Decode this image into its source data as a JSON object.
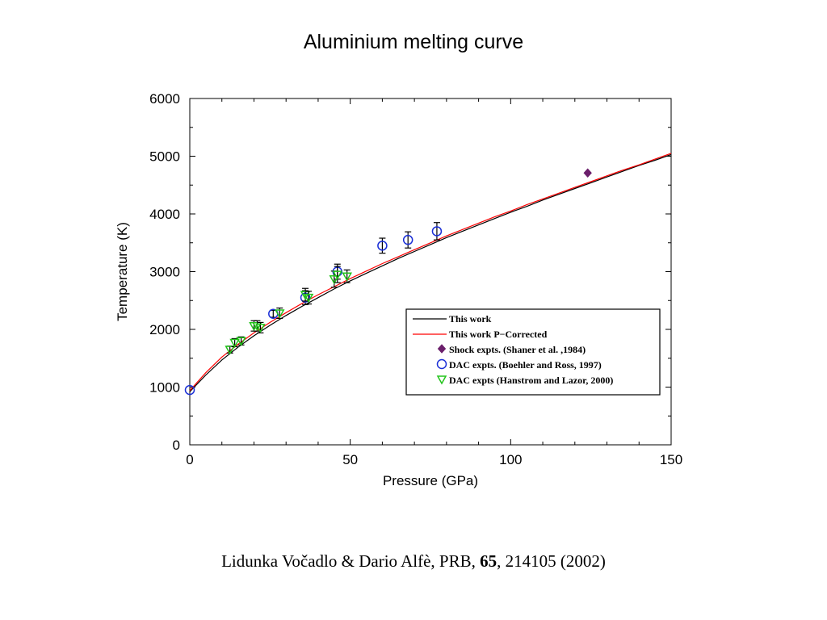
{
  "chart_data": {
    "type": "line",
    "title": "Aluminium melting curve",
    "xlabel": "Pressure (GPa)",
    "ylabel": "Temperature (K)",
    "xlim": [
      0,
      150
    ],
    "ylim": [
      0,
      6000
    ],
    "xticks": [
      0,
      50,
      100,
      150
    ],
    "yticks": [
      0,
      1000,
      2000,
      3000,
      4000,
      5000,
      6000
    ],
    "legend_position": "lower-right",
    "series": [
      {
        "name": "This work",
        "kind": "line",
        "color": "#000000",
        "x": [
          0,
          5,
          10,
          15,
          20,
          25,
          30,
          35,
          40,
          45,
          50,
          55,
          60,
          65,
          70,
          75,
          80,
          85,
          90,
          95,
          100,
          105,
          110,
          115,
          120,
          125,
          130,
          135,
          140,
          145,
          150
        ],
        "y": [
          920,
          1210,
          1470,
          1690,
          1890,
          2070,
          2240,
          2400,
          2550,
          2700,
          2840,
          2970,
          3100,
          3230,
          3350,
          3470,
          3590,
          3700,
          3810,
          3920,
          4030,
          4130,
          4240,
          4340,
          4440,
          4540,
          4640,
          4740,
          4840,
          4930,
          5030
        ]
      },
      {
        "name": "This work P−Corrected",
        "kind": "line",
        "color": "#ff0000",
        "x": [
          0,
          5,
          10,
          15,
          20,
          25,
          30,
          35,
          40,
          45,
          50,
          55,
          60,
          65,
          70,
          75,
          80,
          85,
          90,
          95,
          100,
          105,
          110,
          115,
          120,
          125,
          130,
          135,
          140,
          145,
          150
        ],
        "y": [
          940,
          1250,
          1520,
          1740,
          1940,
          2120,
          2290,
          2450,
          2600,
          2740,
          2880,
          3010,
          3140,
          3260,
          3380,
          3500,
          3620,
          3730,
          3840,
          3950,
          4050,
          4160,
          4260,
          4360,
          4460,
          4560,
          4660,
          4760,
          4850,
          4950,
          5050
        ]
      },
      {
        "name": "Shock expts. (Shaner et al. ,1984)",
        "kind": "marker",
        "marker": "diamond",
        "color": "#6b1f6b",
        "x": [
          124
        ],
        "y": [
          4710
        ],
        "err": [
          0
        ]
      },
      {
        "name": "DAC expts. (Boehler and Ross, 1997)",
        "kind": "marker",
        "marker": "circle",
        "color": "#1a2fd6",
        "x": [
          0,
          26,
          36,
          46,
          60,
          68,
          77
        ],
        "y": [
          950,
          2270,
          2550,
          3000,
          3450,
          3550,
          3700
        ],
        "err": [
          0,
          60,
          120,
          130,
          130,
          140,
          150
        ]
      },
      {
        "name": "DAC expts (Hanstrom and Lazor, 2000)",
        "kind": "marker",
        "marker": "triangle-down",
        "color": "#22c41a",
        "x": [
          12.5,
          14,
          16,
          20,
          21,
          22,
          28,
          36,
          37,
          45,
          46,
          49
        ],
        "y": [
          1650,
          1770,
          1800,
          2060,
          2060,
          2030,
          2280,
          2600,
          2550,
          2870,
          2950,
          2920
        ],
        "err": [
          60,
          70,
          70,
          90,
          90,
          90,
          90,
          110,
          110,
          140,
          140,
          110
        ]
      }
    ]
  },
  "citation": {
    "authors": "Lidunka Vočadlo & Dario Alfè, PRB, ",
    "volume": "65",
    "rest": ", 214105 (2002)"
  }
}
